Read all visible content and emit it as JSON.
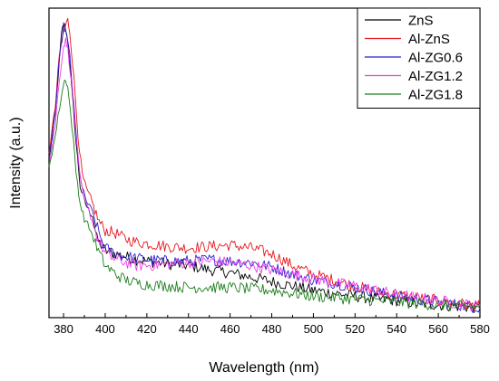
{
  "chart_data": {
    "type": "line",
    "title": "",
    "xlabel": "Wavelength (nm)",
    "ylabel": "Intensity (a.u.)",
    "xlim": [
      373,
      580
    ],
    "ylim": [
      0,
      1
    ],
    "y_ticks_labeled": false,
    "x_ticks": [
      380,
      400,
      420,
      440,
      460,
      480,
      500,
      520,
      540,
      560,
      580
    ],
    "grid": false,
    "legend_position": "top-right",
    "series": [
      {
        "name": "ZnS",
        "color": "#000000",
        "points": [
          [
            373,
            0.52
          ],
          [
            376,
            0.68
          ],
          [
            378,
            0.86
          ],
          [
            379,
            0.95
          ],
          [
            380,
            0.99
          ],
          [
            381,
            0.97
          ],
          [
            382,
            0.93
          ],
          [
            384,
            0.76
          ],
          [
            386,
            0.58
          ],
          [
            388,
            0.43
          ],
          [
            390,
            0.38
          ],
          [
            392,
            0.35
          ],
          [
            394,
            0.33
          ],
          [
            396,
            0.25
          ],
          [
            400,
            0.21
          ],
          [
            405,
            0.2
          ],
          [
            410,
            0.19
          ],
          [
            415,
            0.18
          ],
          [
            420,
            0.175
          ],
          [
            430,
            0.165
          ],
          [
            440,
            0.16
          ],
          [
            450,
            0.145
          ],
          [
            460,
            0.135
          ],
          [
            470,
            0.12
          ],
          [
            480,
            0.105
          ],
          [
            490,
            0.09
          ],
          [
            500,
            0.075
          ],
          [
            510,
            0.065
          ],
          [
            520,
            0.055
          ],
          [
            530,
            0.045
          ],
          [
            540,
            0.04
          ],
          [
            550,
            0.03
          ],
          [
            560,
            0.025
          ],
          [
            570,
            0.02
          ],
          [
            580,
            0.015
          ]
        ]
      },
      {
        "name": "Al-ZnS",
        "color": "#e8141b",
        "points": [
          [
            373,
            0.55
          ],
          [
            376,
            0.7
          ],
          [
            378,
            0.88
          ],
          [
            380,
            0.96
          ],
          [
            382,
            1.0
          ],
          [
            383,
            0.96
          ],
          [
            385,
            0.8
          ],
          [
            387,
            0.6
          ],
          [
            389,
            0.47
          ],
          [
            391,
            0.42
          ],
          [
            393,
            0.39
          ],
          [
            395,
            0.35
          ],
          [
            397,
            0.31
          ],
          [
            400,
            0.28
          ],
          [
            405,
            0.27
          ],
          [
            410,
            0.25
          ],
          [
            415,
            0.24
          ],
          [
            420,
            0.235
          ],
          [
            430,
            0.225
          ],
          [
            440,
            0.22
          ],
          [
            450,
            0.225
          ],
          [
            460,
            0.23
          ],
          [
            470,
            0.22
          ],
          [
            480,
            0.2
          ],
          [
            490,
            0.16
          ],
          [
            500,
            0.13
          ],
          [
            510,
            0.11
          ],
          [
            520,
            0.09
          ],
          [
            530,
            0.07
          ],
          [
            540,
            0.06
          ],
          [
            550,
            0.05
          ],
          [
            560,
            0.04
          ],
          [
            570,
            0.03
          ],
          [
            580,
            0.02
          ]
        ]
      },
      {
        "name": "Al-ZG0.6",
        "color": "#2a1fd0",
        "points": [
          [
            373,
            0.52
          ],
          [
            376,
            0.68
          ],
          [
            378,
            0.86
          ],
          [
            380,
            0.98
          ],
          [
            381,
            0.96
          ],
          [
            383,
            0.88
          ],
          [
            385,
            0.7
          ],
          [
            387,
            0.52
          ],
          [
            389,
            0.42
          ],
          [
            391,
            0.38
          ],
          [
            394,
            0.34
          ],
          [
            397,
            0.27
          ],
          [
            400,
            0.22
          ],
          [
            405,
            0.2
          ],
          [
            410,
            0.19
          ],
          [
            415,
            0.185
          ],
          [
            420,
            0.18
          ],
          [
            430,
            0.175
          ],
          [
            440,
            0.175
          ],
          [
            450,
            0.18
          ],
          [
            460,
            0.175
          ],
          [
            470,
            0.17
          ],
          [
            480,
            0.155
          ],
          [
            490,
            0.13
          ],
          [
            500,
            0.11
          ],
          [
            510,
            0.1
          ],
          [
            520,
            0.085
          ],
          [
            530,
            0.07
          ],
          [
            540,
            0.055
          ],
          [
            550,
            0.045
          ],
          [
            560,
            0.035
          ],
          [
            570,
            0.025
          ],
          [
            580,
            0.015
          ]
        ]
      },
      {
        "name": "Al-ZG1.2",
        "color": "#f03ce8",
        "points": [
          [
            373,
            0.5
          ],
          [
            376,
            0.64
          ],
          [
            378,
            0.8
          ],
          [
            380,
            0.91
          ],
          [
            381,
            0.93
          ],
          [
            382,
            0.9
          ],
          [
            384,
            0.78
          ],
          [
            386,
            0.6
          ],
          [
            388,
            0.45
          ],
          [
            390,
            0.38
          ],
          [
            393,
            0.33
          ],
          [
            396,
            0.26
          ],
          [
            400,
            0.2
          ],
          [
            405,
            0.18
          ],
          [
            410,
            0.17
          ],
          [
            415,
            0.16
          ],
          [
            420,
            0.16
          ],
          [
            430,
            0.165
          ],
          [
            440,
            0.17
          ],
          [
            450,
            0.175
          ],
          [
            460,
            0.17
          ],
          [
            470,
            0.16
          ],
          [
            480,
            0.145
          ],
          [
            490,
            0.13
          ],
          [
            500,
            0.115
          ],
          [
            510,
            0.1
          ],
          [
            520,
            0.09
          ],
          [
            530,
            0.075
          ],
          [
            540,
            0.06
          ],
          [
            550,
            0.05
          ],
          [
            560,
            0.04
          ],
          [
            570,
            0.03
          ],
          [
            580,
            0.02
          ]
        ]
      },
      {
        "name": "Al-ZG1.8",
        "color": "#1a7d1a",
        "points": [
          [
            373,
            0.5
          ],
          [
            376,
            0.6
          ],
          [
            378,
            0.7
          ],
          [
            380,
            0.78
          ],
          [
            381,
            0.8
          ],
          [
            382,
            0.77
          ],
          [
            384,
            0.64
          ],
          [
            386,
            0.48
          ],
          [
            388,
            0.37
          ],
          [
            390,
            0.32
          ],
          [
            393,
            0.28
          ],
          [
            396,
            0.22
          ],
          [
            400,
            0.16
          ],
          [
            405,
            0.13
          ],
          [
            410,
            0.11
          ],
          [
            415,
            0.1
          ],
          [
            420,
            0.095
          ],
          [
            430,
            0.09
          ],
          [
            440,
            0.085
          ],
          [
            450,
            0.085
          ],
          [
            460,
            0.085
          ],
          [
            470,
            0.08
          ],
          [
            480,
            0.075
          ],
          [
            490,
            0.065
          ],
          [
            500,
            0.055
          ],
          [
            510,
            0.05
          ],
          [
            520,
            0.045
          ],
          [
            530,
            0.04
          ],
          [
            540,
            0.035
          ],
          [
            550,
            0.03
          ],
          [
            560,
            0.025
          ],
          [
            570,
            0.02
          ],
          [
            580,
            0.015
          ]
        ]
      }
    ]
  }
}
